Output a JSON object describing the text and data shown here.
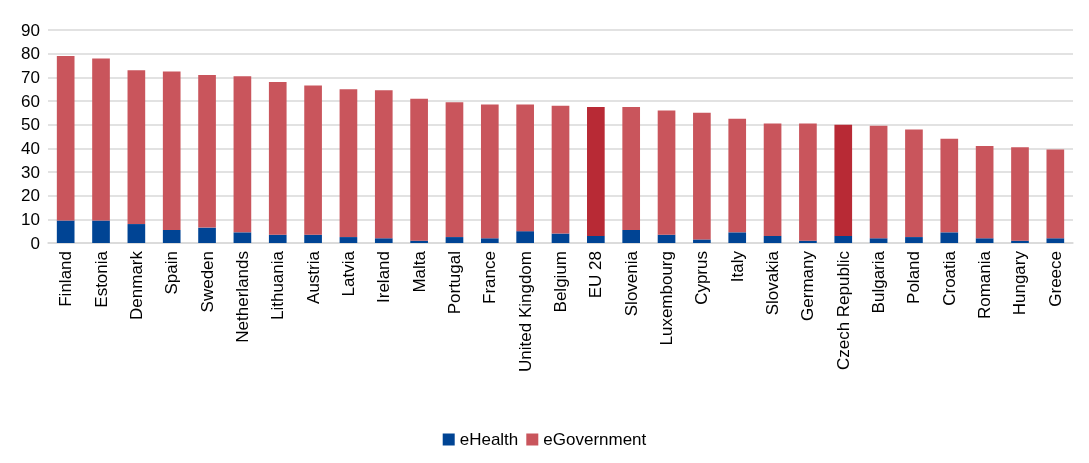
{
  "chart_data": {
    "type": "bar",
    "stacked": true,
    "categories": [
      "Finland",
      "Estonia",
      "Denmark",
      "Spain",
      "Sweden",
      "Netherlands",
      "Lithuania",
      "Austria",
      "Latvia",
      "Ireland",
      "Malta",
      "Portugal",
      "France",
      "United Kingdom",
      "Belgium",
      "EU 28",
      "Slovenia",
      "Luxembourg",
      "Cyprus",
      "Italy",
      "Slovakia",
      "Germany",
      "Czech Republic",
      "Bulgaria",
      "Poland",
      "Croatia",
      "Romania",
      "Hungary",
      "Greece"
    ],
    "series": [
      {
        "name": "eHealth",
        "color": "#004494",
        "values": [
          9.5,
          9.5,
          8,
          5.5,
          6.5,
          4.5,
          3.5,
          3.5,
          2.5,
          2,
          1,
          2.5,
          2,
          5,
          4,
          3,
          5.5,
          3.5,
          1.5,
          4.5,
          3,
          1,
          3,
          2,
          2.5,
          4.5,
          2,
          1,
          2
        ]
      },
      {
        "name": "eGovernment",
        "color": "#c9555c",
        "colors": [
          "#c9555c",
          "#c9555c",
          "#c9555c",
          "#c9555c",
          "#c9555c",
          "#c9555c",
          "#c9555c",
          "#c9555c",
          "#c9555c",
          "#c9555c",
          "#c9555c",
          "#c9555c",
          "#c9555c",
          "#c9555c",
          "#c9555c",
          "#b82a35",
          "#c9555c",
          "#c9555c",
          "#c9555c",
          "#c9555c",
          "#c9555c",
          "#c9555c",
          "#b82a35",
          "#c9555c",
          "#c9555c",
          "#c9555c",
          "#c9555c",
          "#c9555c",
          "#c9555c"
        ],
        "values": [
          69.5,
          68.5,
          65,
          67,
          64.5,
          66,
          64.5,
          63,
          62.5,
          62.5,
          60,
          57,
          56.5,
          53.5,
          54,
          54.5,
          52,
          52.5,
          53.5,
          48,
          47.5,
          49.5,
          47,
          47.5,
          45.5,
          39.5,
          39,
          39.5,
          37.5
        ]
      }
    ],
    "ylim": [
      0,
      90
    ],
    "yticks": [
      0,
      10,
      20,
      30,
      40,
      50,
      60,
      70,
      80,
      90
    ],
    "grid": "y",
    "legend": "bottom"
  }
}
